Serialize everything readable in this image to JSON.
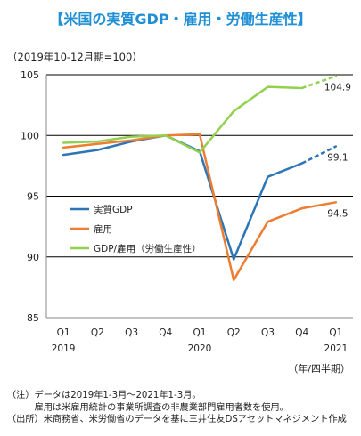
{
  "header": {
    "title": "【米国の実質GDP・雇用・労働生産性】",
    "index_note": "（2019年10-12月期=100）"
  },
  "footer": {
    "unit_label": "（年/四半期）",
    "notes": [
      "（注）データは2019年1-3月～2021年1-3月。",
      "　　　雇用は米雇用統計の事業所調査の非農業部門雇用者数を使用。",
      "（出所）米商務省、米労働省のデータを基に三井住友DSアセットマネジメント作成"
    ]
  },
  "colors": {
    "gdp": "#2e75b6",
    "employment": "#ed7d31",
    "productivity": "#92d050",
    "grid": "#000000"
  },
  "chart_data": {
    "type": "line",
    "x": [
      "Q1",
      "Q2",
      "Q3",
      "Q4",
      "Q1",
      "Q2",
      "Q3",
      "Q4",
      "Q1"
    ],
    "year_labels": [
      "2019",
      "",
      "",
      "",
      "2020",
      "",
      "",
      "",
      "2021"
    ],
    "ylim": [
      85,
      105
    ],
    "yticks": [
      85,
      90,
      95,
      100,
      105
    ],
    "grid": true,
    "legend_position": "lower-left",
    "series": [
      {
        "key": "gdp",
        "name": "実質GDP",
        "values": [
          98.4,
          98.8,
          99.5,
          100.0,
          98.7,
          89.8,
          96.6,
          97.7,
          99.1
        ],
        "dashed_from_index": 7,
        "end_label": "99.1"
      },
      {
        "key": "employment",
        "name": "雇用",
        "values": [
          99.0,
          99.3,
          99.6,
          100.0,
          100.1,
          88.1,
          92.9,
          94.0,
          94.5
        ],
        "dashed_from_index": null,
        "end_label": "94.5"
      },
      {
        "key": "productivity",
        "name": "GDP/雇用（労働生産性）",
        "values": [
          99.4,
          99.5,
          99.9,
          100.0,
          98.6,
          102.0,
          104.0,
          103.9,
          104.9
        ],
        "dashed_from_index": 7,
        "end_label": "104.9"
      }
    ]
  }
}
